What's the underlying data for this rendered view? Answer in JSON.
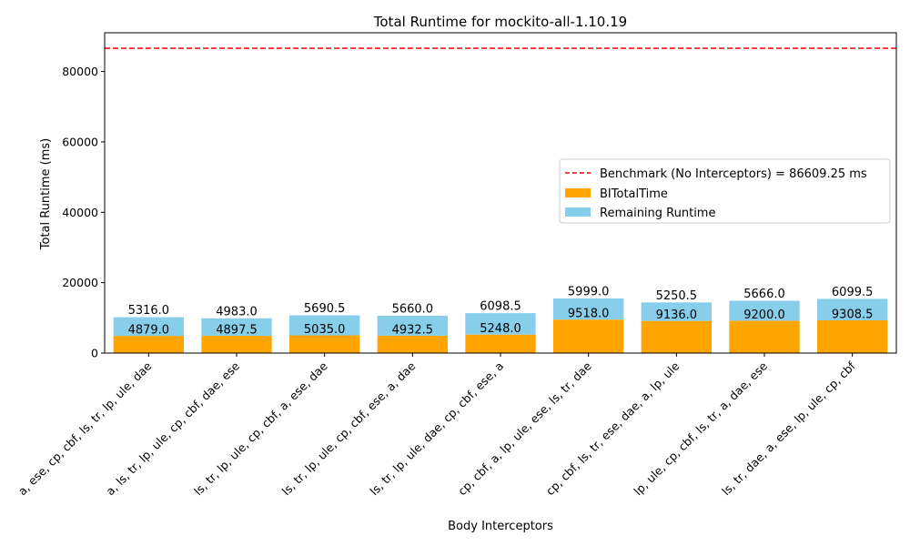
{
  "chart_data": {
    "type": "bar",
    "title": "Total Runtime for mockito-all-1.10.19",
    "xlabel": "Body Interceptors",
    "ylabel": "Total Runtime (ms)",
    "ylim": [
      0,
      91000
    ],
    "yticks": [
      0,
      20000,
      40000,
      60000,
      80000
    ],
    "grid": false,
    "legend_position": "center-right",
    "categories": [
      "a, ese, cp, cbf, ls, tr, lp, ule, dae",
      "a, ls, tr, lp, ule, cp, cbf, dae, ese",
      "ls, tr, lp, ule, cp, cbf, a, ese, dae",
      "ls, tr, lp, ule, cp, cbf, ese, a, dae",
      "ls, tr, lp, ule, dae, cp, cbf, ese, a",
      "cp, cbf, a, lp, ule, ese, ls, tr, dae",
      "cp, cbf, ls, tr, ese, dae, a, lp, ule",
      "lp, ule, cp, cbf, ls, tr, a, dae, ese",
      "ls, tr, dae, a, ese, lp, ule, cp, cbf"
    ],
    "series": [
      {
        "name": "BITotalTime",
        "color": "#FFA500",
        "values": [
          4879.0,
          4897.5,
          5035.0,
          4932.5,
          5248.0,
          9518.0,
          9136.0,
          9200.0,
          9308.5
        ],
        "labels": [
          "4879.0",
          "4897.5",
          "5035.0",
          "4932.5",
          "5248.0",
          "9518.0",
          "9136.0",
          "9200.0",
          "9308.5"
        ]
      },
      {
        "name": "Remaining Runtime",
        "color": "#87CEEB",
        "values": [
          5316.0,
          4983.0,
          5690.5,
          5660.0,
          6098.5,
          5999.0,
          5250.5,
          5666.0,
          6099.5
        ],
        "labels": [
          "5316.0",
          "4983.0",
          "5690.5",
          "5660.0",
          "6098.5",
          "5999.0",
          "5250.5",
          "5666.0",
          "6099.5"
        ]
      }
    ],
    "benchmark": {
      "name": "Benchmark (No Interceptors) = 86609.25 ms",
      "value": 86609.25,
      "color": "#FF0000",
      "style": "dashed"
    }
  }
}
